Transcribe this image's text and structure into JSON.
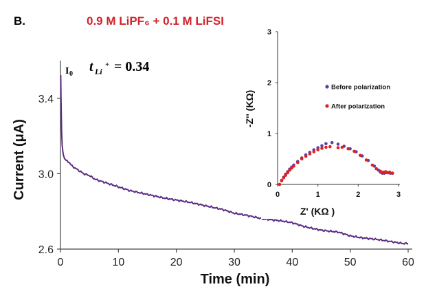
{
  "panel_label": "B.",
  "chart_data": [
    {
      "type": "line",
      "title": "0.9 M LiPF₆ + 0.1 M LiFSI",
      "xlabel": "Time (min)",
      "ylabel": "Current (μA)",
      "xlim": [
        0,
        60
      ],
      "ylim": [
        2.6,
        3.6
      ],
      "x_ticks": [
        0,
        10,
        20,
        30,
        40,
        50,
        60
      ],
      "y_ticks": [
        "2.6",
        "3.0",
        "3.4"
      ],
      "grid": false,
      "colors": {
        "series": "#5b2c83"
      },
      "annotations": {
        "i0": "I",
        "i0_sub": "0",
        "t_label": "t",
        "t_sub": "Li",
        "t_sup": "+",
        "t_value": "= 0.34"
      },
      "series": [
        {
          "x": [
            0.0,
            0.05,
            0.1,
            0.15,
            0.2,
            0.3,
            0.4,
            0.5,
            0.7,
            1.0,
            1.5,
            2,
            3,
            4,
            5,
            6,
            8,
            10,
            12,
            15,
            18,
            20,
            22,
            25,
            28,
            30,
            32,
            35,
            38,
            40,
            42,
            45,
            48,
            50,
            52,
            55,
            57,
            59,
            60
          ],
          "y": [
            3.52,
            3.52,
            3.4,
            3.3,
            3.22,
            3.15,
            3.12,
            3.1,
            3.08,
            3.07,
            3.06,
            3.04,
            3.02,
            3.0,
            2.99,
            2.97,
            2.95,
            2.93,
            2.91,
            2.89,
            2.87,
            2.86,
            2.85,
            2.83,
            2.81,
            2.79,
            2.78,
            2.76,
            2.75,
            2.74,
            2.72,
            2.7,
            2.69,
            2.67,
            2.66,
            2.65,
            2.64,
            2.63,
            2.63
          ]
        }
      ]
    },
    {
      "type": "scatter",
      "xlabel": "Z' (KΩ )",
      "ylabel": "-Z'' (KΩ)",
      "xlim": [
        0,
        3
      ],
      "ylim": [
        0,
        3
      ],
      "x_ticks": [
        0,
        1,
        2,
        3
      ],
      "y_ticks": [
        0,
        1,
        2,
        3
      ],
      "grid": false,
      "legend_position": "top-right",
      "series": [
        {
          "name": "Before polarization",
          "color": "#5b3fa6",
          "x": [
            0.05,
            0.1,
            0.15,
            0.2,
            0.25,
            0.3,
            0.35,
            0.4,
            0.5,
            0.6,
            0.7,
            0.8,
            0.9,
            1.0,
            1.1,
            1.2,
            1.35,
            1.5,
            1.65,
            1.8,
            1.95,
            2.1,
            2.25,
            2.4,
            2.5,
            2.55,
            2.6,
            2.65,
            2.7,
            2.75,
            2.8,
            2.85
          ],
          "y": [
            0.0,
            0.08,
            0.14,
            0.2,
            0.25,
            0.3,
            0.34,
            0.38,
            0.45,
            0.52,
            0.58,
            0.63,
            0.68,
            0.72,
            0.76,
            0.8,
            0.82,
            0.79,
            0.75,
            0.7,
            0.64,
            0.56,
            0.47,
            0.36,
            0.28,
            0.24,
            0.22,
            0.22,
            0.24,
            0.23,
            0.22,
            0.22
          ]
        },
        {
          "name": "After polarization",
          "color": "#e02020",
          "x": [
            0.05,
            0.1,
            0.15,
            0.2,
            0.25,
            0.3,
            0.35,
            0.4,
            0.5,
            0.6,
            0.7,
            0.8,
            0.9,
            1.0,
            1.1,
            1.2,
            1.3,
            1.5,
            1.6,
            1.75,
            1.9,
            2.05,
            2.2,
            2.35,
            2.45,
            2.55,
            2.62,
            2.68,
            2.72,
            2.78,
            2.85
          ],
          "y": [
            0.0,
            0.07,
            0.13,
            0.18,
            0.23,
            0.28,
            0.32,
            0.36,
            0.43,
            0.5,
            0.55,
            0.6,
            0.64,
            0.68,
            0.71,
            0.73,
            0.74,
            0.72,
            0.73,
            0.7,
            0.65,
            0.57,
            0.48,
            0.38,
            0.31,
            0.26,
            0.24,
            0.25,
            0.23,
            0.24,
            0.22
          ]
        }
      ]
    }
  ]
}
